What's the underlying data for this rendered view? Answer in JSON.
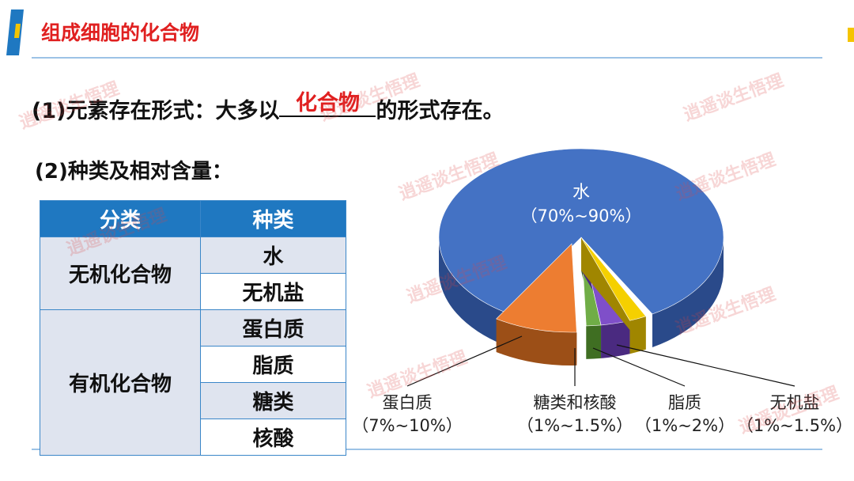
{
  "header": {
    "title": "组成细胞的化合物"
  },
  "point1": {
    "prefix": "(1)元素存在形式：大多以",
    "answer": "化合物",
    "suffix": "的形式存在。"
  },
  "point2": {
    "text": "(2)种类及相对含量："
  },
  "table": {
    "headers": [
      "分类",
      "种类"
    ],
    "groups": [
      {
        "category": "无机化合物",
        "kinds": [
          "水",
          "无机盐"
        ]
      },
      {
        "category": "有机化合物",
        "kinds": [
          "蛋白质",
          "脂质",
          "糖类",
          "核酸"
        ]
      }
    ]
  },
  "pie": {
    "slices": [
      {
        "name": "水",
        "range": "（70%~90%）"
      },
      {
        "name": "蛋白质",
        "range": "（7%~10%）"
      },
      {
        "name": "糖类和核酸",
        "range": "（1%~1.5%）"
      },
      {
        "name": "脂质",
        "range": "（1%~2%）"
      },
      {
        "name": "无机盐",
        "range": "（1%~1.5%）"
      }
    ]
  },
  "watermark": "逍遥谈生悟理"
}
